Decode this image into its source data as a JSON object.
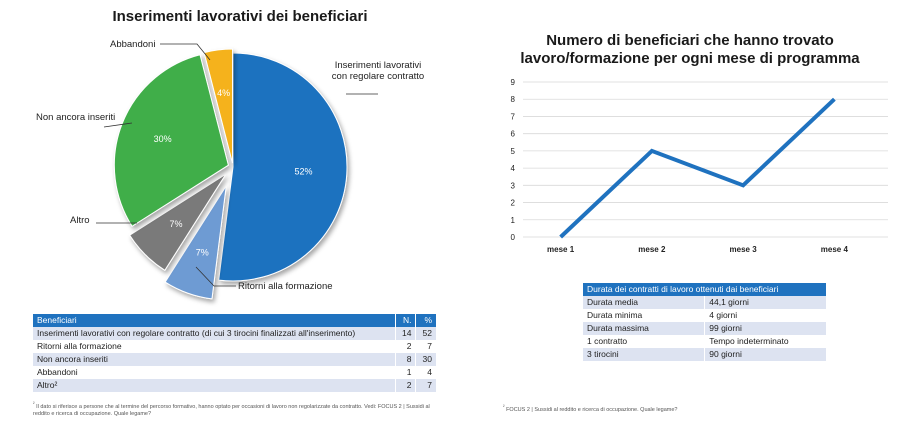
{
  "chart_data": [
    {
      "type": "pie",
      "title": "Inserimenti lavorativi dei beneficiari",
      "slices": [
        {
          "label": "Inserimenti lavorativi con regolare contratto",
          "value": 52,
          "display": "52%",
          "color": "#1f72bf"
        },
        {
          "label": "Ritorni alla formazione",
          "value": 7,
          "display": "7%",
          "color": "#6e9bd3"
        },
        {
          "label": "Altro",
          "value": 7,
          "display": "7%",
          "color": "#7a7a7a"
        },
        {
          "label": "Non ancora inseriti",
          "value": 30,
          "display": "30%",
          "color": "#3fae49"
        },
        {
          "label": "Abbandoni",
          "value": 4,
          "display": "4%",
          "color": "#f5b21b"
        }
      ]
    },
    {
      "type": "line",
      "title_line1": "Numero di beneficiari che hanno trovato",
      "title_line2": "lavoro/formazione per ogni mese di programma",
      "categories": [
        "mese 1",
        "mese 2",
        "mese 3",
        "mese 4"
      ],
      "values": [
        0,
        5,
        3,
        8
      ],
      "ylim": [
        0,
        9
      ],
      "yticks": [
        0,
        1,
        2,
        3,
        4,
        5,
        6,
        7,
        8,
        9
      ],
      "color": "#1f72bf",
      "grid": true
    }
  ],
  "benef_table": {
    "headers": [
      "Beneficiari",
      "N.",
      "%"
    ],
    "rows": [
      [
        "Inserimenti lavorativi con regolare contratto (di cui 3 tirocini finalizzati all'inserimento)",
        "14",
        "52"
      ],
      [
        "Ritorni alla formazione",
        "2",
        "7"
      ],
      [
        "Non ancora inseriti",
        "8",
        "30"
      ],
      [
        "Abbandoni",
        "1",
        "4"
      ],
      [
        "Altro²",
        "2",
        "7"
      ]
    ]
  },
  "contract_table": {
    "header": "Durata dei contratti di lavoro ottenuti dai beneficiari",
    "rows": [
      [
        "Durata media",
        "44,1 giorni"
      ],
      [
        "Durata minima",
        "4 giorni"
      ],
      [
        "Durata massima",
        "99 giorni"
      ],
      [
        "1 contratto",
        "Tempo indeterminato"
      ],
      [
        "3 tirocini",
        "90 giorni"
      ]
    ]
  },
  "footnotes": {
    "left_marker": "²",
    "left": "Il dato si riferisce a persone che al termine del percorso formativo, hanno optato per occasioni di lavoro non regolarizzate da contratto. Vedi: FOCUS 2 | Sussidi al reddito e ricerca di occupazione. Quale legame?",
    "right_marker": "²",
    "right": "FOCUS 2 | Sussidi al reddito e ricerca di occupazione. Quale legame?"
  }
}
